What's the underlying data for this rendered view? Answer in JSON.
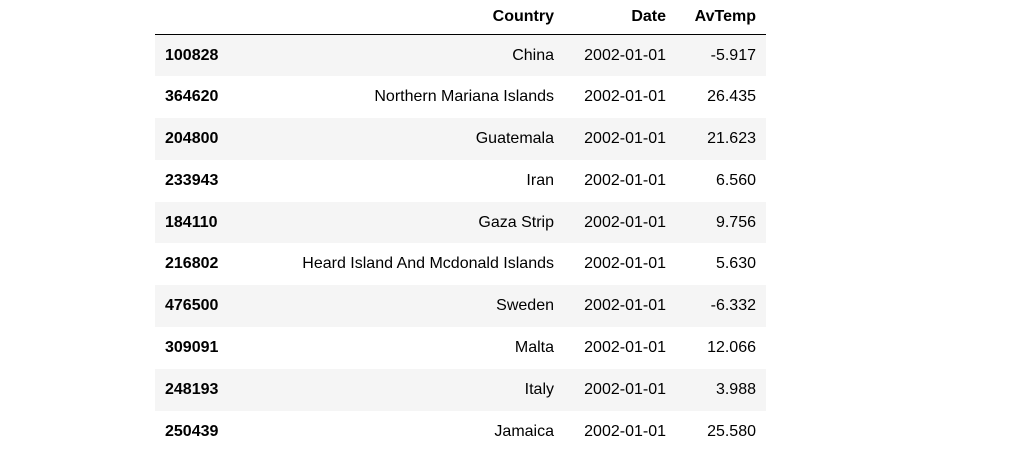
{
  "table": {
    "columns": [
      "",
      "Country",
      "Date",
      "AvTemp"
    ],
    "rows": [
      {
        "index": "100828",
        "country": "China",
        "date": "2002-01-01",
        "avtemp": "-5.917"
      },
      {
        "index": "364620",
        "country": "Northern Mariana Islands",
        "date": "2002-01-01",
        "avtemp": "26.435"
      },
      {
        "index": "204800",
        "country": "Guatemala",
        "date": "2002-01-01",
        "avtemp": "21.623"
      },
      {
        "index": "233943",
        "country": "Iran",
        "date": "2002-01-01",
        "avtemp": "6.560"
      },
      {
        "index": "184110",
        "country": "Gaza Strip",
        "date": "2002-01-01",
        "avtemp": "9.756"
      },
      {
        "index": "216802",
        "country": "Heard Island And Mcdonald Islands",
        "date": "2002-01-01",
        "avtemp": "5.630"
      },
      {
        "index": "476500",
        "country": "Sweden",
        "date": "2002-01-01",
        "avtemp": "-6.332"
      },
      {
        "index": "309091",
        "country": "Malta",
        "date": "2002-01-01",
        "avtemp": "12.066"
      },
      {
        "index": "248193",
        "country": "Italy",
        "date": "2002-01-01",
        "avtemp": "3.988"
      },
      {
        "index": "250439",
        "country": "Jamaica",
        "date": "2002-01-01",
        "avtemp": "25.580"
      }
    ]
  },
  "colors": {
    "stripe": "#f5f5f5",
    "header_rule": "#000000"
  }
}
